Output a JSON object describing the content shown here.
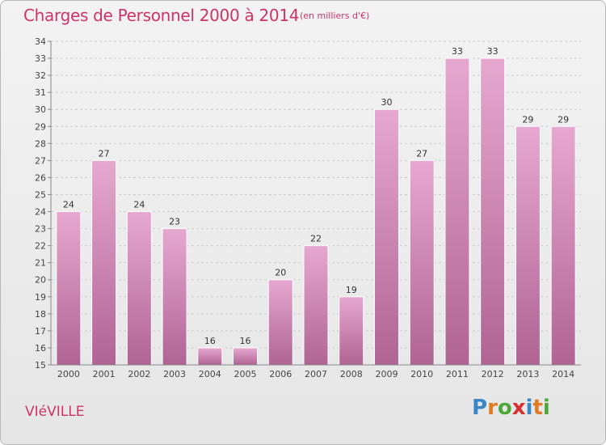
{
  "header": {
    "title": "Charges de Personnel 2000 à 2014",
    "subtitle": "(en milliers d'€)"
  },
  "footer": {
    "commune": "VIéVILLE",
    "brand_letters": [
      "P",
      "r",
      "o",
      "x",
      "i",
      "t",
      "i"
    ],
    "brand_colors": [
      "#3a87c8",
      "#e07b22",
      "#4da83a",
      "#d8302f",
      "#3a87c8",
      "#e07b22",
      "#4da83a"
    ]
  },
  "colors": {
    "accent": "#cc3366",
    "bar_top": "#e6a8d0",
    "bar_bottom": "#b06494",
    "grid": "#cccccc"
  },
  "chart_data": {
    "type": "bar",
    "categories": [
      "2000",
      "2001",
      "2002",
      "2003",
      "2004",
      "2005",
      "2006",
      "2007",
      "2008",
      "2009",
      "2010",
      "2011",
      "2012",
      "2013",
      "2014"
    ],
    "values": [
      24,
      27,
      24,
      23,
      16,
      16,
      20,
      22,
      19,
      30,
      27,
      33,
      33,
      29,
      29
    ],
    "title": "Charges de Personnel 2000 à 2014",
    "subtitle": "(en milliers d'€)",
    "ylim": [
      15,
      34
    ],
    "yticks": [
      15,
      16,
      17,
      18,
      19,
      20,
      21,
      22,
      23,
      24,
      25,
      26,
      27,
      28,
      29,
      30,
      31,
      32,
      33,
      34
    ],
    "grid": true,
    "legend": "none"
  }
}
